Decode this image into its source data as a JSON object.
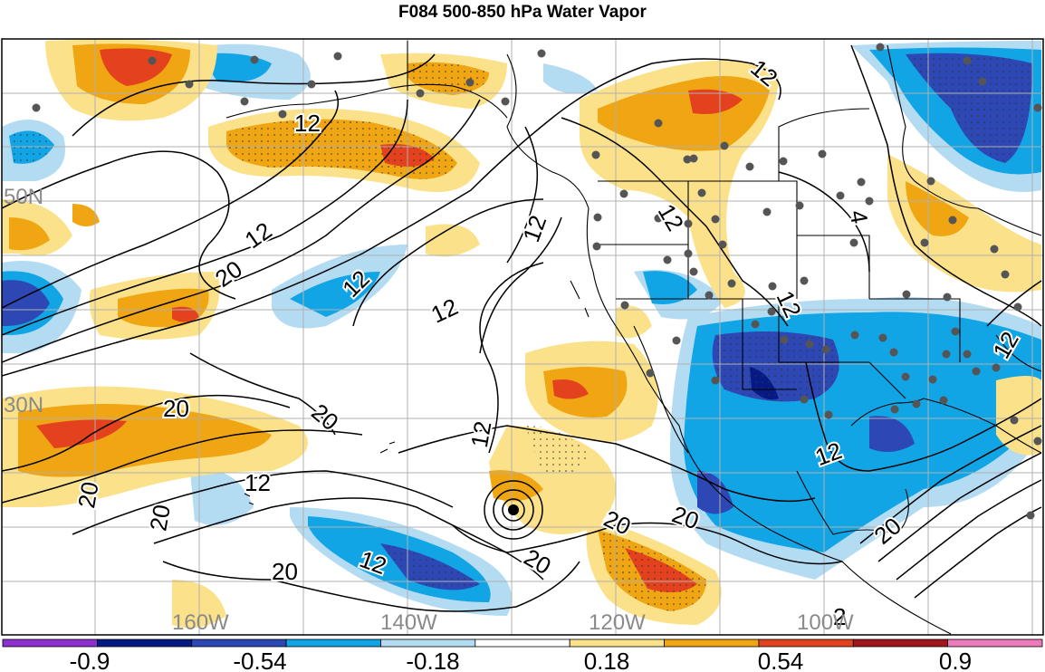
{
  "title": "F084 500-850 hPa Water Vapor",
  "lat_labels": [
    "50N",
    "30N"
  ],
  "lon_labels": [
    "160W",
    "140W",
    "120W",
    "100W"
  ],
  "contour_labels": [
    "12",
    "12",
    "12",
    "12",
    "12",
    "12",
    "12",
    "12",
    "12",
    "12",
    "12",
    "20",
    "20",
    "20",
    "20",
    "20",
    "20",
    "20",
    "20",
    "20",
    "4",
    "2"
  ],
  "colorbar": {
    "colors": [
      "#8e2fd0",
      "#061a86",
      "#2d47b4",
      "#11a5e6",
      "#b3dcf3",
      "#ffffff",
      "#fbe28a",
      "#f0a512",
      "#e4421e",
      "#a1151d",
      "#ee7bbb"
    ],
    "labels": [
      "-0.9",
      "-0.54",
      "-0.18",
      "0.18",
      "0.54",
      "0.9"
    ]
  },
  "colors": {
    "light_blue": "#b3dcf3",
    "cyan": "#11a5e6",
    "blue": "#2d47b4",
    "navy": "#061a86",
    "yellow": "#fbe28a",
    "orange": "#f0a512",
    "red": "#e4421e",
    "grid": "#b0b0b0"
  }
}
